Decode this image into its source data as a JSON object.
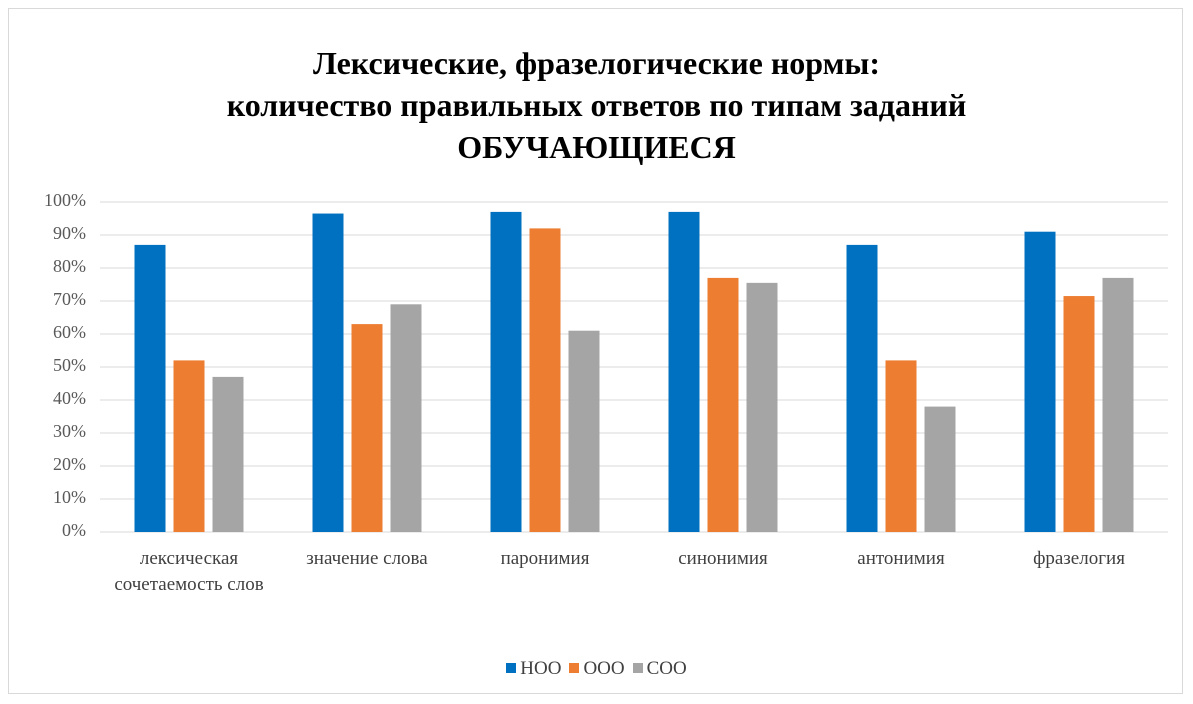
{
  "chart_data": {
    "type": "bar",
    "title": "Лексические, фразелогические нормы:\nколичество правильных ответов по типам заданий\nОБУЧАЮЩИЕСЯ",
    "categories": [
      "лексическая сочетаемость слов",
      "значение слова",
      "паронимия",
      "синонимия",
      "антонимия",
      "фразелогия"
    ],
    "series": [
      {
        "name": "НОО",
        "color": "#0070c0",
        "values": [
          87,
          96.5,
          97,
          97,
          87,
          91
        ]
      },
      {
        "name": "ООО",
        "color": "#ed7d31",
        "values": [
          52,
          63,
          92,
          77,
          52,
          71.5
        ]
      },
      {
        "name": "СОО",
        "color": "#a5a5a5",
        "values": [
          47,
          69,
          61,
          75.5,
          38,
          77
        ]
      }
    ],
    "ylim": [
      0,
      100
    ],
    "yticks": [
      {
        "value": 0,
        "label": "0%"
      },
      {
        "value": 10,
        "label": "10%"
      },
      {
        "value": 20,
        "label": "20%"
      },
      {
        "value": 30,
        "label": "30%"
      },
      {
        "value": 40,
        "label": "40%"
      },
      {
        "value": 50,
        "label": "50%"
      },
      {
        "value": 60,
        "label": "60%"
      },
      {
        "value": 70,
        "label": "70%"
      },
      {
        "value": 80,
        "label": "80%"
      },
      {
        "value": 90,
        "label": "90%"
      },
      {
        "value": 100,
        "label": "100%"
      }
    ],
    "grid": true,
    "legend": "bottom"
  }
}
